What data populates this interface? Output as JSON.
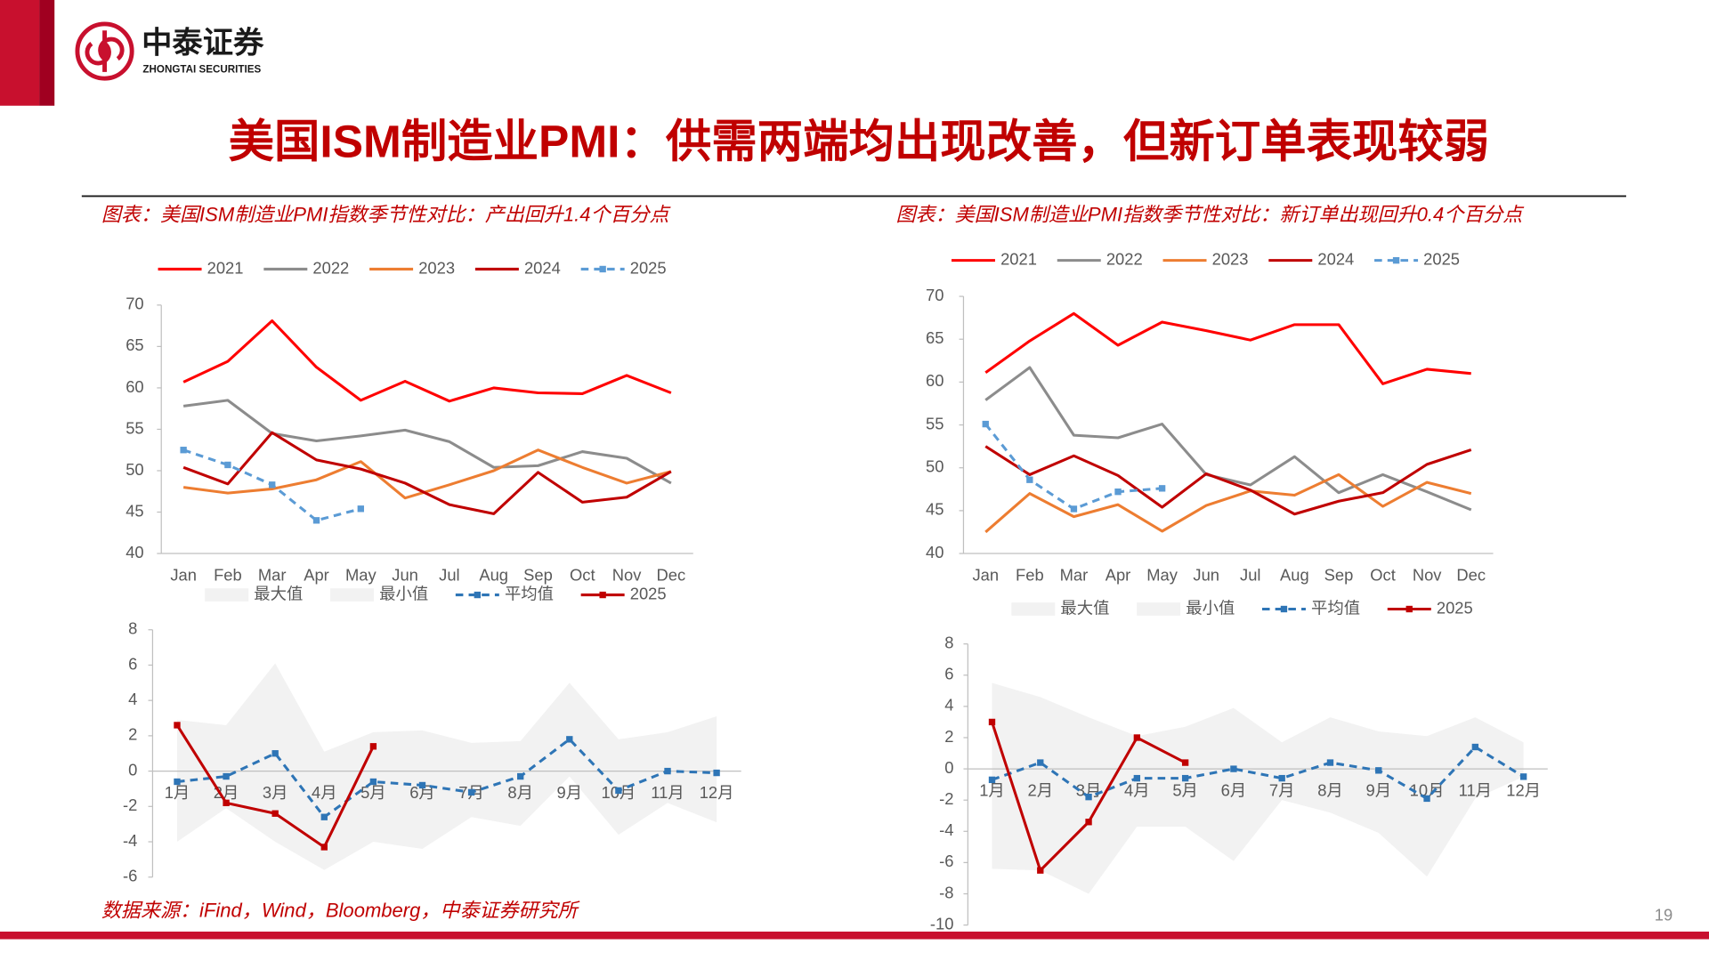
{
  "header": {
    "logo_cn": "中泰证券",
    "logo_en": "ZHONGTAI SECURITIES",
    "title": "美国ISM制造业PMI：供需两端均出现改善，但新订单表现较弱"
  },
  "captions": [
    "图表：美国ISM制造业PMI指数季节性对比：产出回升1.4个百分点",
    "图表：美国ISM制造业PMI指数季节性对比：新订单出现回升0.4个百分点"
  ],
  "source": "数据来源：iFind，Wind，Bloomberg，中泰证券研究所",
  "page_number": "19",
  "chart_data": [
    {
      "type": "line",
      "categories": [
        "Jan",
        "Feb",
        "Mar",
        "Apr",
        "May",
        "Jun",
        "Jul",
        "Aug",
        "Sep",
        "Oct",
        "Nov",
        "Dec"
      ],
      "ylim": [
        40,
        70
      ],
      "yticks": [
        40,
        45,
        50,
        55,
        60,
        65,
        70
      ],
      "grid": false,
      "series": [
        {
          "name": "2021",
          "color": "#ff0000",
          "values": [
            60.7,
            63.2,
            68.1,
            62.5,
            58.5,
            60.8,
            58.4,
            60.0,
            59.4,
            59.3,
            61.5,
            59.4
          ]
        },
        {
          "name": "2022",
          "color": "#8c8c8c",
          "values": [
            57.8,
            58.5,
            54.5,
            53.6,
            54.2,
            54.9,
            53.5,
            50.4,
            50.6,
            52.3,
            51.5,
            48.5
          ]
        },
        {
          "name": "2023",
          "color": "#ed7d31",
          "values": [
            48.0,
            47.3,
            47.8,
            48.9,
            51.1,
            46.7,
            48.3,
            50.0,
            52.5,
            50.4,
            48.5,
            49.9
          ]
        },
        {
          "name": "2024",
          "color": "#c00000",
          "values": [
            50.4,
            48.4,
            54.6,
            51.3,
            50.2,
            48.5,
            45.9,
            44.8,
            49.8,
            46.2,
            46.8,
            49.9
          ]
        },
        {
          "name": "2025",
          "color": "#5b9bd5",
          "dash": true,
          "marker": "square",
          "values": [
            52.5,
            50.7,
            48.3,
            44.0,
            45.4,
            null,
            null,
            null,
            null,
            null,
            null,
            null
          ]
        }
      ]
    },
    {
      "type": "line",
      "categories": [
        "1月",
        "2月",
        "3月",
        "4月",
        "5月",
        "6月",
        "7月",
        "8月",
        "9月",
        "10月",
        "11月",
        "12月"
      ],
      "ylim": [
        -6,
        8
      ],
      "yticks": [
        -6,
        -4,
        -2,
        0,
        2,
        4,
        6,
        8
      ],
      "grid": false,
      "series": [
        {
          "name": "最大值",
          "color": "#f2f2f2",
          "kind": "area",
          "values": [
            2.9,
            2.6,
            6.1,
            1.1,
            2.2,
            2.3,
            1.6,
            1.7,
            5.0,
            1.8,
            2.2,
            3.1
          ]
        },
        {
          "name": "最小值",
          "color": "#f2f2f2",
          "kind": "area",
          "values": [
            -4.0,
            -2.1,
            -4.0,
            -5.6,
            -4.0,
            -4.4,
            -2.6,
            -3.1,
            -0.3,
            -3.6,
            -1.8,
            -2.9
          ]
        },
        {
          "name": "平均值",
          "color": "#2e75b6",
          "dash": true,
          "marker": "square",
          "values": [
            -0.6,
            -0.3,
            1.0,
            -2.6,
            -0.6,
            -0.8,
            -1.2,
            -0.3,
            1.8,
            -1.1,
            0.0,
            -0.1
          ]
        },
        {
          "name": "2025",
          "color": "#c00000",
          "marker": "square",
          "values": [
            2.6,
            -1.8,
            -2.4,
            -4.3,
            1.4,
            null,
            null,
            null,
            null,
            null,
            null,
            null
          ]
        }
      ]
    },
    {
      "type": "line",
      "categories": [
        "Jan",
        "Feb",
        "Mar",
        "Apr",
        "May",
        "Jun",
        "Jul",
        "Aug",
        "Sep",
        "Oct",
        "Nov",
        "Dec"
      ],
      "ylim": [
        40,
        70
      ],
      "yticks": [
        40,
        45,
        50,
        55,
        60,
        65,
        70
      ],
      "grid": false,
      "series": [
        {
          "name": "2021",
          "color": "#ff0000",
          "values": [
            61.1,
            64.8,
            68.0,
            64.3,
            67.0,
            66.0,
            64.9,
            66.7,
            66.7,
            59.8,
            61.5,
            61.0
          ]
        },
        {
          "name": "2022",
          "color": "#8c8c8c",
          "values": [
            57.9,
            61.7,
            53.8,
            53.5,
            55.1,
            49.2,
            48.0,
            51.3,
            47.1,
            49.2,
            47.2,
            45.1
          ]
        },
        {
          "name": "2023",
          "color": "#ed7d31",
          "values": [
            42.5,
            47.0,
            44.3,
            45.7,
            42.6,
            45.6,
            47.3,
            46.8,
            49.2,
            45.5,
            48.3,
            47.0
          ]
        },
        {
          "name": "2024",
          "color": "#c00000",
          "values": [
            52.5,
            49.2,
            51.4,
            49.1,
            45.4,
            49.3,
            47.4,
            44.6,
            46.1,
            47.1,
            50.4,
            52.1
          ]
        },
        {
          "name": "2025",
          "color": "#5b9bd5",
          "dash": true,
          "marker": "square",
          "values": [
            55.1,
            48.6,
            45.2,
            47.2,
            47.6,
            null,
            null,
            null,
            null,
            null,
            null,
            null
          ]
        }
      ]
    },
    {
      "type": "line",
      "categories": [
        "1月",
        "2月",
        "3月",
        "4月",
        "5月",
        "6月",
        "7月",
        "8月",
        "9月",
        "10月",
        "11月",
        "12月"
      ],
      "ylim": [
        -10,
        8
      ],
      "yticks": [
        -10,
        -8,
        -6,
        -4,
        -2,
        0,
        2,
        4,
        6,
        8
      ],
      "grid": false,
      "series": [
        {
          "name": "最大值",
          "color": "#f2f2f2",
          "kind": "area",
          "values": [
            5.5,
            4.6,
            3.3,
            2.1,
            2.7,
            3.9,
            1.7,
            3.3,
            2.4,
            2.1,
            3.3,
            1.7
          ]
        },
        {
          "name": "最小值",
          "color": "#f2f2f2",
          "kind": "area",
          "values": [
            -6.4,
            -6.5,
            -8.0,
            -3.7,
            -3.7,
            -5.9,
            -2.0,
            -2.8,
            -4.1,
            -6.9,
            -1.9,
            -0.5
          ]
        },
        {
          "name": "平均值",
          "color": "#2e75b6",
          "dash": true,
          "marker": "square",
          "values": [
            -0.7,
            0.4,
            -1.8,
            -0.6,
            -0.6,
            0.0,
            -0.6,
            0.4,
            -0.1,
            -1.9,
            1.4,
            -0.5
          ]
        },
        {
          "name": "2025",
          "color": "#c00000",
          "marker": "square",
          "values": [
            3.0,
            -6.5,
            -3.4,
            2.0,
            0.4,
            null,
            null,
            null,
            null,
            null,
            null,
            null
          ]
        }
      ]
    }
  ]
}
